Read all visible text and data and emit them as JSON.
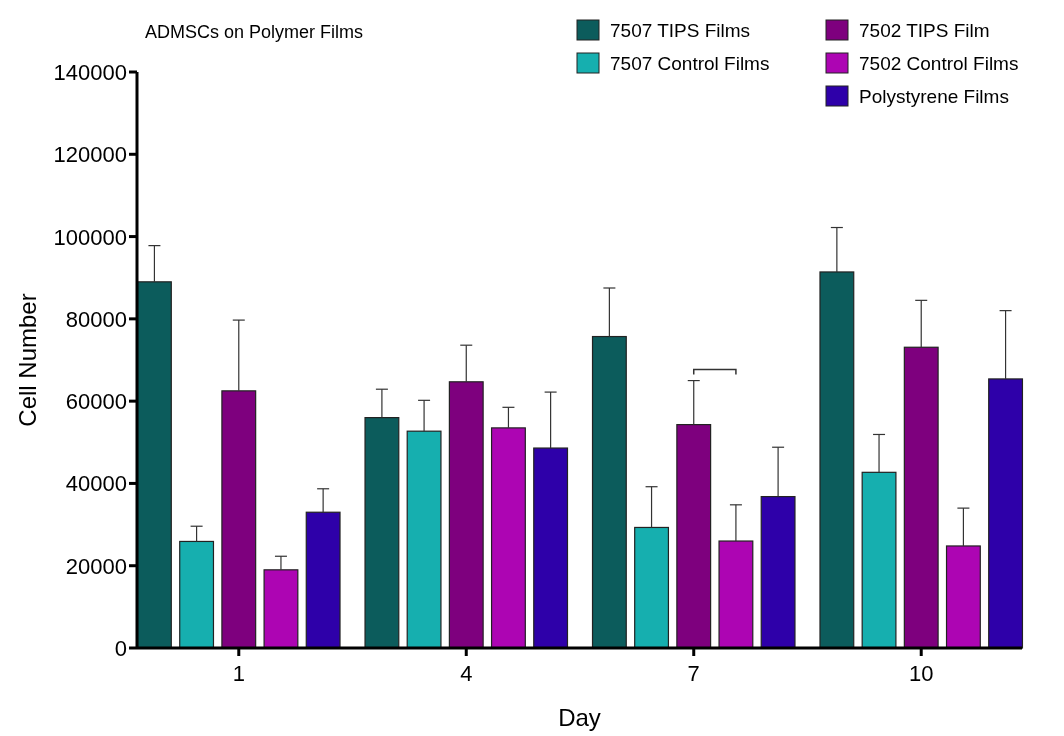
{
  "chart_data": {
    "type": "bar",
    "title": "ADMSCs on Polymer Films",
    "xlabel": "Day",
    "ylabel": "Cell Number",
    "categories": [
      "1",
      "4",
      "7",
      "10"
    ],
    "series": [
      {
        "name": "7507 TIPS Films",
        "color": "#0c5c5c",
        "values": [
          89000,
          56000,
          75700,
          91400
        ],
        "errors": [
          [
            89000,
            97800
          ],
          [
            56000,
            62900
          ],
          [
            75700,
            87500
          ],
          [
            91400,
            102200
          ]
        ]
      },
      {
        "name": "7507 Control Films",
        "color": "#16afaf",
        "values": [
          25900,
          52700,
          29300,
          42700
        ],
        "errors": [
          [
            25900,
            29600
          ],
          [
            52700,
            60200
          ],
          [
            29300,
            39200
          ],
          [
            42700,
            51900
          ]
        ]
      },
      {
        "name": "7502 TIPS Film",
        "color": "#7e007e",
        "values": [
          62500,
          64700,
          54300,
          73100
        ],
        "errors": [
          [
            62500,
            79700
          ],
          [
            64700,
            73600
          ],
          [
            54300,
            65000
          ],
          [
            73100,
            84500
          ]
        ]
      },
      {
        "name": "7502 Control Films",
        "color": "#ad05b3",
        "values": [
          19000,
          53500,
          26000,
          24800
        ],
        "errors": [
          [
            19000,
            22300
          ],
          [
            53500,
            58500
          ],
          [
            26000,
            34800
          ],
          [
            24800,
            34000
          ]
        ]
      },
      {
        "name": "Polystyrene Films",
        "color": "#2e00a9",
        "values": [
          33000,
          48600,
          36800,
          65400
        ],
        "errors": [
          [
            33000,
            38700
          ],
          [
            48600,
            62200
          ],
          [
            36800,
            48800
          ],
          [
            65400,
            82000
          ]
        ]
      }
    ],
    "ylim": [
      0,
      140000
    ],
    "yticks": [
      0,
      20000,
      40000,
      60000,
      80000,
      100000,
      120000,
      140000
    ],
    "legend": "top right"
  }
}
